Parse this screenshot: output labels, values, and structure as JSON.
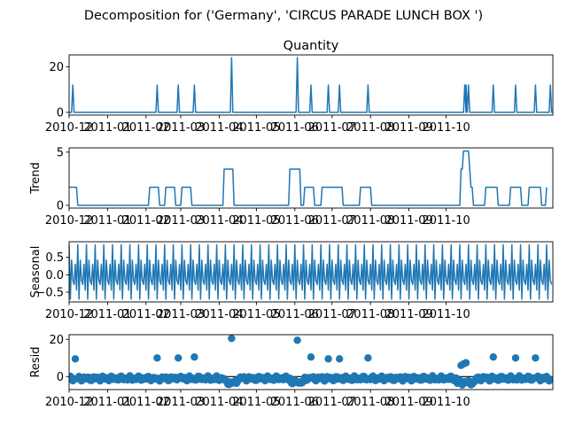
{
  "chart_data": {
    "suptitle": "Decomposition for ('Germany', 'CIRCUS PARADE LUNCH BOX ')",
    "x_ticks": [
      "2010-12",
      "2011-01",
      "2011-02",
      "2011-03",
      "2011-04",
      "2011-05",
      "2011-06",
      "2011-07",
      "2011-08",
      "2011-09",
      "2011-10"
    ],
    "line_color": "#1f77b4",
    "panels": [
      {
        "id": "quantity",
        "type": "line",
        "title": "Quantity",
        "ylabel": "",
        "ylim": [
          -1.2,
          25.2
        ],
        "yticks": [
          0,
          20
        ],
        "spikes": [
          {
            "day": 3,
            "value": 12
          },
          {
            "day": 71,
            "value": 12
          },
          {
            "day": 88,
            "value": 12
          },
          {
            "day": 101,
            "value": 12
          },
          {
            "day": 131,
            "value": 24
          },
          {
            "day": 184,
            "value": 24
          },
          {
            "day": 195,
            "value": 12
          },
          {
            "day": 209,
            "value": 12
          },
          {
            "day": 218,
            "value": 12
          },
          {
            "day": 241,
            "value": 12
          },
          {
            "day": 319,
            "value": 12
          },
          {
            "day": 320,
            "value": 12
          },
          {
            "day": 322,
            "value": 12
          },
          {
            "day": 342,
            "value": 12
          },
          {
            "day": 360,
            "value": 12
          },
          {
            "day": 376,
            "value": 12
          },
          {
            "day": 388,
            "value": 12
          }
        ]
      },
      {
        "id": "trend",
        "type": "line",
        "title": "",
        "ylabel": "Trend",
        "ylim": [
          -0.26,
          5.4
        ],
        "yticks": [
          0,
          5
        ],
        "points": [
          [
            0,
            1.7
          ],
          [
            2,
            1.7
          ],
          [
            3,
            1.7
          ],
          [
            4,
            1.7
          ],
          [
            6,
            1.7
          ],
          [
            7,
            0
          ],
          [
            64,
            0
          ],
          [
            65,
            1.7
          ],
          [
            72,
            1.7
          ],
          [
            73,
            0
          ],
          [
            77,
            0
          ],
          [
            78,
            1.7
          ],
          [
            85,
            1.7
          ],
          [
            86,
            0
          ],
          [
            90,
            0
          ],
          [
            91,
            1.7
          ],
          [
            98,
            1.7
          ],
          [
            99,
            0
          ],
          [
            124,
            0
          ],
          [
            125,
            3.4
          ],
          [
            132,
            3.4
          ],
          [
            133,
            0
          ],
          [
            177,
            0
          ],
          [
            178,
            3.4
          ],
          [
            186,
            3.4
          ],
          [
            187,
            0
          ],
          [
            189,
            0
          ],
          [
            190,
            1.7
          ],
          [
            197,
            1.7
          ],
          [
            198,
            0
          ],
          [
            203,
            0
          ],
          [
            204,
            1.7
          ],
          [
            220,
            1.7
          ],
          [
            221,
            0
          ],
          [
            234,
            0
          ],
          [
            235,
            1.7
          ],
          [
            243,
            1.7
          ],
          [
            244,
            0
          ],
          [
            315,
            0
          ],
          [
            316,
            3.4
          ],
          [
            317,
            3.4
          ],
          [
            318,
            5.1
          ],
          [
            322,
            5.1
          ],
          [
            323,
            3.4
          ],
          [
            324,
            1.7
          ],
          [
            325,
            1.7
          ],
          [
            326,
            0
          ],
          [
            335,
            0
          ],
          [
            336,
            1.7
          ],
          [
            345,
            1.7
          ],
          [
            346,
            0
          ],
          [
            355,
            0
          ],
          [
            356,
            1.7
          ],
          [
            364,
            1.7
          ],
          [
            365,
            0
          ],
          [
            370,
            0
          ],
          [
            371,
            1.7
          ],
          [
            380,
            1.7
          ],
          [
            381,
            0
          ],
          [
            384,
            0
          ],
          [
            385,
            1.7
          ]
        ]
      },
      {
        "id": "seasonal",
        "type": "line",
        "title": "",
        "ylabel": "Seasonal",
        "ylim": [
          -0.78,
          0.95
        ],
        "yticks": [
          -0.5,
          0.0,
          0.5
        ],
        "period": 7,
        "pattern": [
          0.86,
          -0.7,
          0.42,
          -0.16,
          -0.28,
          0.3,
          -0.44
        ],
        "start_day": 0,
        "end_day": 389
      },
      {
        "id": "resid",
        "type": "scatter",
        "title": "",
        "ylabel": "Resid",
        "ylim": [
          -7.0,
          22.5
        ],
        "yticks": [
          0,
          20
        ],
        "outliers": [
          {
            "day": 5,
            "value": 9.5
          },
          {
            "day": 71,
            "value": 10
          },
          {
            "day": 88,
            "value": 10
          },
          {
            "day": 101,
            "value": 10.5
          },
          {
            "day": 131,
            "value": 20.5
          },
          {
            "day": 184,
            "value": 19.5
          },
          {
            "day": 195,
            "value": 10.5
          },
          {
            "day": 209,
            "value": 9.5
          },
          {
            "day": 218,
            "value": 9.5
          },
          {
            "day": 241,
            "value": 10
          },
          {
            "day": 316,
            "value": 6
          },
          {
            "day": 318,
            "value": 6.8
          },
          {
            "day": 320,
            "value": 7.4
          },
          {
            "day": 342,
            "value": 10.5
          },
          {
            "day": 360,
            "value": 10
          },
          {
            "day": 376,
            "value": 10
          }
        ]
      }
    ]
  }
}
